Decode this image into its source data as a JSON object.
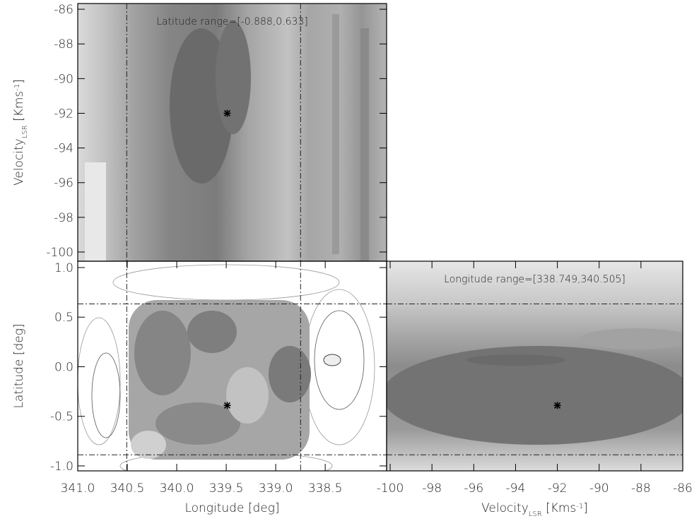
{
  "chart_data": [
    {
      "type": "contour",
      "xlim": [
        341.0,
        337.88
      ],
      "ylim": [
        -100.53,
        -85.67
      ],
      "yticks": [
        -86,
        -88,
        -90,
        -92,
        -94,
        -96,
        -98,
        -100
      ],
      "ylabel": [
        "Velocity",
        "LSR",
        " [Kms",
        "-1",
        "]"
      ],
      "annotation": "Latitude range=[-0.888,0.633]",
      "vlines": [
        340.505,
        338.749
      ],
      "markers": [
        {
          "x": 339.49,
          "y": -92
        }
      ]
    },
    {
      "type": "contour",
      "xlim": [
        341.0,
        337.88
      ],
      "ylim": [
        -1.05,
        1.064
      ],
      "xticks": [
        {
          "value": 341.0,
          "label": "341.0"
        },
        340.5,
        {
          "value": 340.0,
          "label": "340.0"
        },
        339.5,
        {
          "value": 339.0,
          "label": "339.0"
        },
        338.5
      ],
      "yticks": [
        {
          "value": 1.0,
          "label": "1.0"
        },
        0.5,
        {
          "value": 0.0,
          "label": "0.0"
        },
        -0.5,
        {
          "value": -1.0,
          "label": "-1.0"
        }
      ],
      "xlabel": [
        "Longitude [deg]"
      ],
      "ylabel": [
        "Latitude [deg]"
      ],
      "vlines": [
        340.505,
        338.749
      ],
      "hlines": [
        0.633,
        -0.888
      ],
      "markers": [
        {
          "x": 339.49,
          "y": -0.39
        }
      ]
    },
    {
      "type": "contour",
      "xlim": [
        -100.17,
        -86.0
      ],
      "ylim": [
        -1.05,
        1.064
      ],
      "xticks": [
        -100,
        -98,
        -96,
        -94,
        -92,
        -90,
        -88,
        -86
      ],
      "xlabel": [
        "Velocity",
        "LSR",
        " [Kms",
        "-1",
        "]"
      ],
      "annotation": "Longitude range=[338.749,340.505]",
      "hlines": [
        0.633,
        -0.888
      ],
      "markers": [
        {
          "x": -92,
          "y": -0.39
        }
      ]
    }
  ]
}
